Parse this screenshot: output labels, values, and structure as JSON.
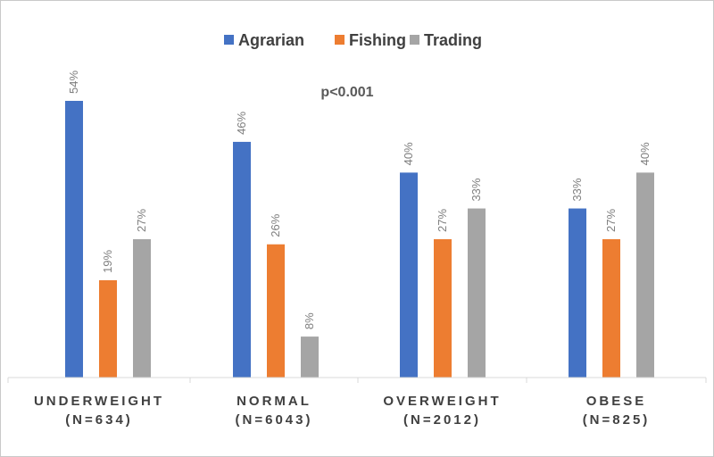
{
  "chart_data": {
    "type": "bar",
    "categories": [
      [
        "UNDERWEIGHT",
        "(N=634)"
      ],
      [
        "NORMAL",
        "(N=6043)"
      ],
      [
        "OVERWEIGHT",
        "(N=2012)"
      ],
      [
        "OBESE",
        "(N=825)"
      ]
    ],
    "series": [
      {
        "name": "Agrarian",
        "color": "#4472C4",
        "values": [
          54,
          46,
          40,
          33
        ],
        "labels": [
          "54%",
          "46%",
          "40%",
          "33%"
        ]
      },
      {
        "name": "Fishing",
        "color": "#ED7D31",
        "values": [
          19,
          26,
          27,
          27
        ],
        "labels": [
          "19%",
          "26%",
          "27%",
          "27%"
        ]
      },
      {
        "name": "Trading",
        "color": "#A5A5A5",
        "values": [
          27,
          8,
          33,
          40
        ],
        "labels": [
          "27%",
          "8%",
          "33%",
          "40%"
        ]
      }
    ],
    "annotation": "p<0.001",
    "ylim": [
      0,
      54
    ],
    "grid": false,
    "legend_position": "top"
  }
}
